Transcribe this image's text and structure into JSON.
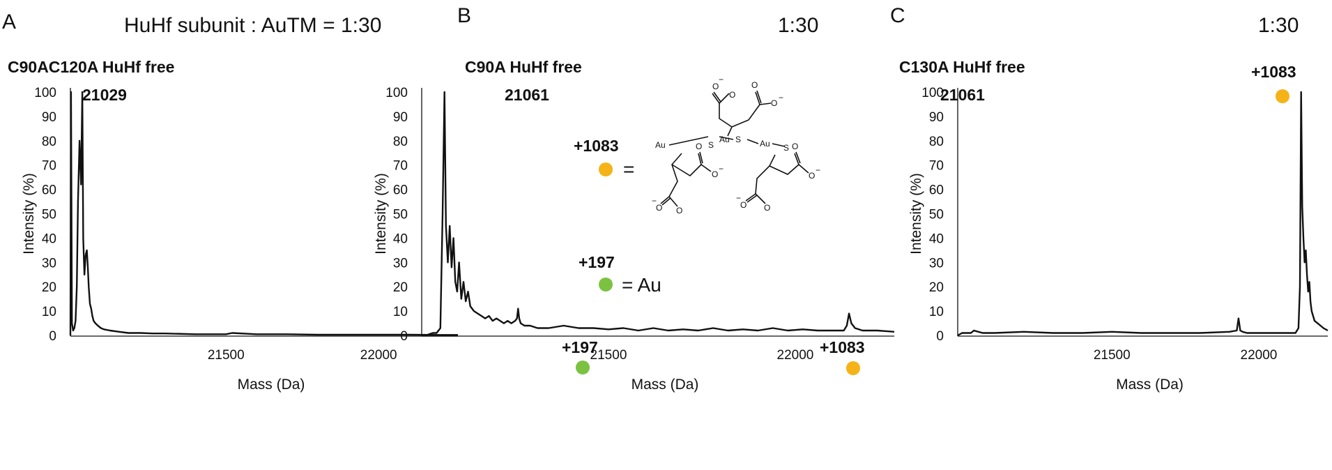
{
  "header": {
    "panel_a_letter": "A",
    "panel_b_letter": "B",
    "panel_c_letter": "C",
    "ratio_prefix": "HuHf subunit : AuTM =",
    "ratio": "1:30",
    "ratio_b": "1:30",
    "ratio_c": "1:30"
  },
  "legend": {
    "adduct_large_label": "+1083",
    "adduct_large_color": "#F5B317",
    "adduct_large_equals": "=",
    "adduct_small_label": "+197",
    "adduct_small_color": "#7CC242",
    "adduct_small_equals": "= Au",
    "structure_labels": {
      "au": "Au",
      "s": "S",
      "o": "O",
      "minus": "−"
    }
  },
  "chart_data": [
    {
      "panel": "A",
      "type": "line",
      "title": "C90AC120A HuHf free",
      "xlabel": "Mass (Da)",
      "ylabel": "Intensity (%)",
      "xlim": [
        20990,
        22260
      ],
      "ylim": [
        0,
        100
      ],
      "xticks": [
        21500,
        22000
      ],
      "yticks": [
        0,
        10,
        20,
        30,
        40,
        50,
        60,
        70,
        80,
        90,
        100
      ],
      "peak_annotations": [
        {
          "label": "21029",
          "x": 21029,
          "y": 100,
          "marker": ""
        }
      ],
      "x": [
        20990,
        20992,
        20995,
        20999,
        21003,
        21007,
        21011,
        21015,
        21020,
        21025,
        21029,
        21032,
        21036,
        21040,
        21044,
        21047,
        21050,
        21054,
        21058,
        21062,
        21066,
        21072,
        21080,
        21090,
        21100,
        21120,
        21150,
        21180,
        21220,
        21260,
        21300,
        21400,
        21500,
        21520,
        21600,
        21700,
        21800,
        21900,
        22000,
        22100,
        22200,
        22260
      ],
      "y": [
        0,
        100,
        5,
        2,
        3,
        6,
        20,
        55,
        80,
        62,
        100,
        40,
        25,
        33,
        35,
        28,
        20,
        13,
        11,
        8,
        6,
        5,
        4,
        3,
        2.5,
        2,
        1.5,
        1,
        1,
        0.8,
        0.8,
        0.5,
        0.5,
        1,
        0.5,
        0.5,
        0.3,
        0.3,
        0.3,
        0.3,
        0.2,
        0.2
      ]
    },
    {
      "panel": "B",
      "type": "line",
      "title": "C90A HuHf free",
      "xlabel": "Mass (Da)",
      "ylabel": "Intensity (%)",
      "xlim": [
        21000,
        22265
      ],
      "ylim": [
        0,
        100
      ],
      "xticks": [
        21500,
        22000
      ],
      "yticks": [
        0,
        10,
        20,
        30,
        40,
        50,
        60,
        70,
        80,
        90,
        100
      ],
      "peak_annotations": [
        {
          "label": "21061",
          "x": 21061,
          "y": 100,
          "marker": ""
        },
        {
          "label": "+197",
          "x": 21258,
          "y": 10,
          "marker": "small"
        },
        {
          "label": "+1083",
          "x": 22144,
          "y": 9,
          "marker": "large"
        }
      ],
      "x": [
        21000,
        21012,
        21020,
        21030,
        21040,
        21050,
        21056,
        21061,
        21065,
        21070,
        21075,
        21080,
        21085,
        21090,
        21095,
        21100,
        21106,
        21112,
        21118,
        21124,
        21130,
        21140,
        21150,
        21160,
        21170,
        21180,
        21190,
        21200,
        21210,
        21220,
        21230,
        21240,
        21250,
        21255,
        21258,
        21261,
        21265,
        21275,
        21290,
        21310,
        21340,
        21380,
        21420,
        21460,
        21500,
        21540,
        21580,
        21620,
        21660,
        21700,
        21740,
        21780,
        21820,
        21860,
        21900,
        21940,
        21980,
        22020,
        22060,
        22100,
        22130,
        22138,
        22144,
        22150,
        22160,
        22180,
        22220,
        22265
      ],
      "y": [
        0,
        0,
        0.5,
        1,
        1,
        3,
        50,
        100,
        45,
        30,
        45,
        28,
        40,
        22,
        18,
        30,
        15,
        22,
        14,
        18,
        12,
        10,
        9,
        8,
        7,
        8,
        6,
        7,
        6,
        5,
        6,
        5,
        6,
        7,
        11,
        7,
        5,
        4,
        4,
        3,
        3,
        4,
        3,
        3,
        2.5,
        3,
        2,
        3,
        2,
        2.5,
        2,
        3,
        2,
        2.5,
        2,
        3,
        2,
        2.5,
        2,
        2,
        2,
        4,
        9,
        5,
        3,
        2,
        2,
        1.5
      ]
    },
    {
      "panel": "C",
      "type": "line",
      "title": "C130A HuHf free",
      "xlabel": "Mass (Da)",
      "ylabel": "Intensity (%)",
      "xlim": [
        20975,
        22235
      ],
      "ylim": [
        0,
        100
      ],
      "xticks": [
        21500,
        22000
      ],
      "yticks": [
        0,
        10,
        20,
        30,
        40,
        50,
        60,
        70,
        80,
        90,
        100
      ],
      "peak_annotations": [
        {
          "label": "21061",
          "x": 21061,
          "y": null,
          "marker": ""
        },
        {
          "label": "+1083",
          "x": 22144,
          "y": 100,
          "marker": "large"
        }
      ],
      "x": [
        20975,
        20990,
        21000,
        21020,
        21030,
        21060,
        21100,
        21200,
        21300,
        21400,
        21500,
        21600,
        21700,
        21800,
        21900,
        21925,
        21931,
        21937,
        21945,
        21960,
        22000,
        22050,
        22100,
        22125,
        22135,
        22140,
        22144,
        22148,
        22152,
        22156,
        22160,
        22164,
        22168,
        22172,
        22176,
        22180,
        22185,
        22190,
        22200,
        22210,
        22220,
        22235
      ],
      "y": [
        0,
        1,
        1,
        1,
        2,
        1,
        1,
        1.5,
        1,
        1,
        1.5,
        1,
        1,
        1,
        1.5,
        2,
        7,
        2,
        1.5,
        1,
        1,
        1,
        1,
        1,
        3,
        20,
        100,
        53,
        40,
        30,
        35,
        25,
        18,
        22,
        14,
        10,
        8,
        6,
        5,
        4,
        3,
        2
      ]
    }
  ]
}
